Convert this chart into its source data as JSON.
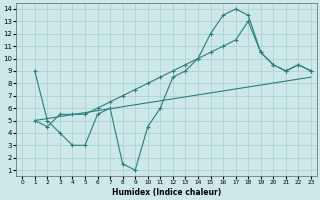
{
  "xlabel": "Humidex (Indice chaleur)",
  "bg_color": "#cce8e8",
  "line_color": "#2d7d7d",
  "grid_color": "#aacece",
  "xlim": [
    -0.5,
    23.5
  ],
  "ylim": [
    0.5,
    14.5
  ],
  "xticks": [
    0,
    1,
    2,
    3,
    4,
    5,
    6,
    7,
    8,
    9,
    10,
    11,
    12,
    13,
    14,
    15,
    16,
    17,
    18,
    19,
    20,
    21,
    22,
    23
  ],
  "yticks": [
    1,
    2,
    3,
    4,
    5,
    6,
    7,
    8,
    9,
    10,
    11,
    12,
    13,
    14
  ],
  "series": [
    {
      "x": [
        1,
        2,
        3,
        4,
        5,
        6,
        7,
        8,
        9,
        10,
        11,
        12,
        13,
        14,
        15,
        16,
        17,
        18,
        19,
        20,
        21,
        22,
        23
      ],
      "y": [
        9,
        5,
        4,
        3,
        3,
        5.5,
        6,
        1.5,
        1,
        4.5,
        6,
        8.5,
        9,
        10,
        12,
        13.5,
        14,
        13.5,
        10.5,
        9.5,
        9,
        9.5,
        9
      ],
      "marker": true
    },
    {
      "x": [
        1,
        2,
        3,
        4,
        5,
        6,
        7,
        8,
        9,
        10,
        11,
        12,
        13,
        14,
        15,
        16,
        17,
        18,
        19,
        20,
        21,
        22,
        23
      ],
      "y": [
        5,
        4.5,
        5.5,
        5.5,
        5.5,
        6,
        6.5,
        7,
        7.5,
        8,
        8.5,
        9,
        9.5,
        10,
        10.5,
        11,
        11.5,
        13,
        10.5,
        9.5,
        9,
        9.5,
        9
      ],
      "marker": true
    },
    {
      "x": [
        1,
        23
      ],
      "y": [
        5,
        8.5
      ],
      "marker": false
    }
  ]
}
